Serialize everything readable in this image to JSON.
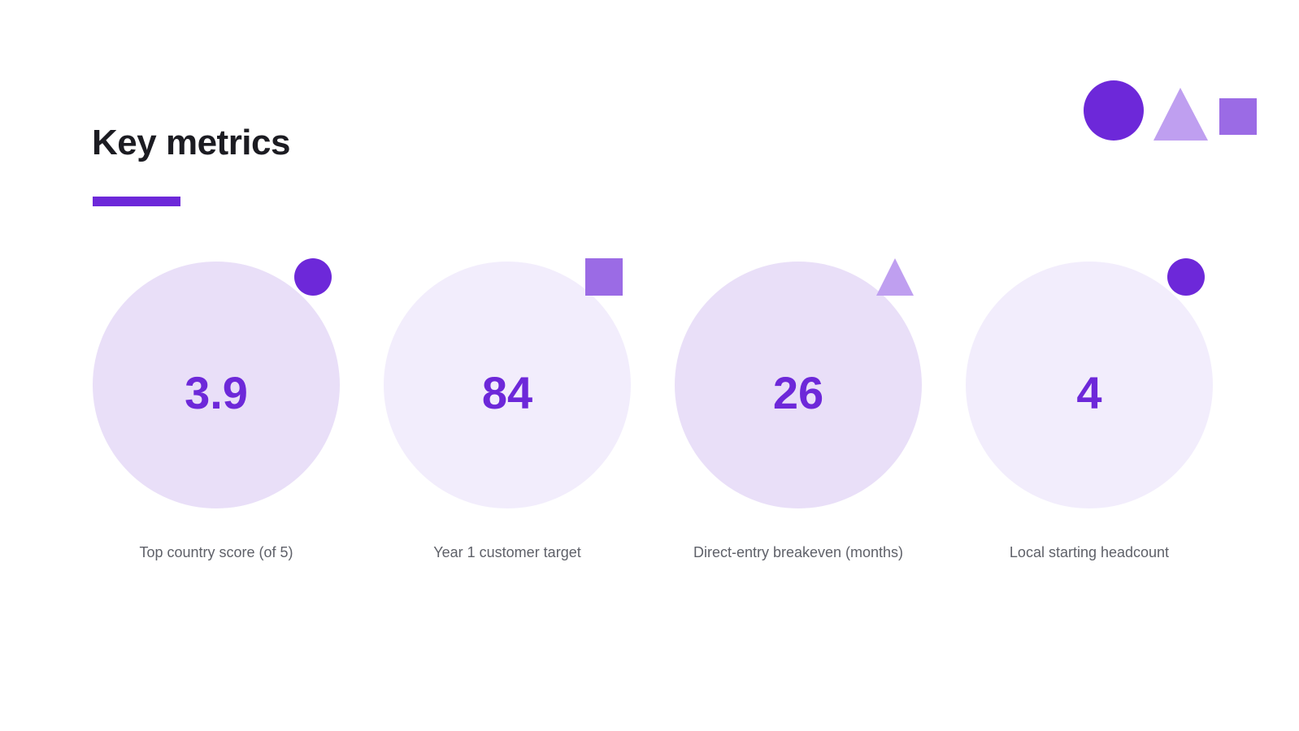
{
  "slide": {
    "title": "Key metrics"
  },
  "colors": {
    "title_text": "#1c1c22",
    "accent": "#6d28d9",
    "accent_mid": "#9b6be5",
    "accent_light": "#bf9ff0",
    "label_text": "#5f6169",
    "circle_fill_a": "#e9dff8",
    "circle_fill_b": "#f2edfc"
  },
  "header_decoration": [
    "circle-icon",
    "triangle-icon",
    "square-icon"
  ],
  "metrics": [
    {
      "value": "3.9",
      "label": "Top country score (of 5)",
      "marker": "circle-icon"
    },
    {
      "value": "84",
      "label": "Year 1 customer target",
      "marker": "square-icon"
    },
    {
      "value": "26",
      "label": "Direct-entry breakeven (months)",
      "marker": "triangle-icon"
    },
    {
      "value": "4",
      "label": "Local starting headcount",
      "marker": "circle-icon"
    }
  ]
}
